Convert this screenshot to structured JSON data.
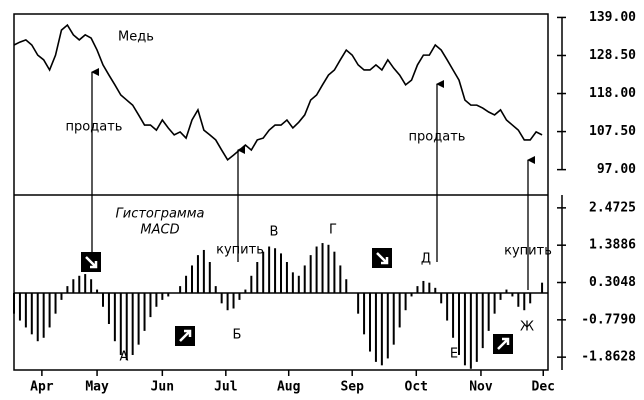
{
  "chart_data": [
    {
      "type": "line",
      "title": "Медь",
      "color": "#000000",
      "x": [
        0,
        1,
        2,
        3,
        4,
        5,
        6,
        7,
        8,
        9,
        10,
        11,
        12,
        13,
        14,
        15,
        16,
        17,
        18,
        19,
        20,
        21,
        22,
        23,
        24,
        25,
        26,
        27,
        28,
        29,
        30,
        31,
        32,
        33,
        34,
        35,
        36,
        37,
        38,
        39,
        40,
        41,
        42,
        43,
        44,
        45,
        46,
        47,
        48,
        49,
        50,
        51,
        52,
        53,
        54,
        55,
        56,
        57,
        58,
        59,
        60,
        61,
        62,
        63,
        64,
        65,
        66,
        67,
        68,
        69,
        70,
        71,
        72,
        73,
        74,
        75,
        76,
        77,
        78,
        79,
        80,
        81,
        82,
        83,
        84,
        85,
        86,
        87,
        88,
        89
      ],
      "values": [
        131.4,
        132.2,
        132.8,
        131.4,
        128.6,
        127.3,
        124.5,
        128.6,
        135.5,
        136.9,
        134.2,
        132.8,
        134.2,
        133.3,
        130.0,
        125.9,
        123.1,
        120.4,
        117.6,
        116.2,
        114.8,
        112.1,
        109.3,
        109.3,
        107.9,
        110.7,
        108.5,
        106.6,
        107.4,
        105.7,
        110.7,
        113.5,
        107.9,
        106.6,
        105.2,
        102.4,
        99.7,
        101.0,
        102.4,
        103.8,
        102.4,
        105.2,
        105.7,
        107.9,
        109.3,
        109.3,
        110.7,
        108.5,
        110.1,
        112.1,
        116.2,
        117.6,
        120.4,
        123.1,
        124.5,
        127.3,
        130.0,
        128.6,
        125.9,
        124.5,
        124.5,
        125.9,
        124.5,
        127.3,
        125.0,
        123.1,
        120.4,
        121.7,
        125.9,
        128.6,
        128.6,
        131.4,
        130.0,
        127.3,
        124.5,
        121.7,
        116.2,
        114.8,
        114.8,
        114.0,
        112.9,
        112.1,
        113.5,
        110.7,
        109.3,
        107.9,
        105.2,
        105.2,
        107.4,
        106.6
      ],
      "xlim": [
        0,
        90
      ],
      "ylim": [
        90,
        140.5
      ],
      "yticks": [
        {
          "value": 139,
          "label": "139.00"
        },
        {
          "value": 128.5,
          "label": "128.50"
        },
        {
          "value": 118,
          "label": "118.00"
        },
        {
          "value": 107.5,
          "label": "107.50"
        },
        {
          "value": 97,
          "label": "97.00"
        }
      ],
      "annotations": [
        "продать",
        "продать"
      ]
    },
    {
      "type": "bar",
      "color": "#000000",
      "x": [
        0,
        1,
        2,
        3,
        4,
        5,
        6,
        7,
        8,
        9,
        10,
        11,
        12,
        13,
        14,
        15,
        16,
        17,
        18,
        19,
        20,
        21,
        22,
        23,
        24,
        25,
        26,
        27,
        28,
        29,
        30,
        31,
        32,
        33,
        34,
        35,
        36,
        37,
        38,
        39,
        40,
        41,
        42,
        43,
        44,
        45,
        46,
        47,
        48,
        49,
        50,
        51,
        52,
        53,
        54,
        55,
        56,
        57,
        58,
        59,
        60,
        61,
        62,
        63,
        64,
        65,
        66,
        67,
        68,
        69,
        70,
        71,
        72,
        73,
        74,
        75,
        76,
        77,
        78,
        79,
        80,
        81,
        82,
        83,
        84,
        85,
        86,
        87,
        88,
        89
      ],
      "values": [
        -0.6,
        -0.8,
        -1.0,
        -1.2,
        -1.4,
        -1.3,
        -1.0,
        -0.6,
        -0.2,
        0.2,
        0.4,
        0.5,
        0.55,
        0.4,
        0.1,
        -0.4,
        -0.9,
        -1.4,
        -1.8,
        -1.95,
        -1.8,
        -1.5,
        -1.1,
        -0.7,
        -0.4,
        -0.2,
        -0.1,
        0.0,
        0.2,
        0.5,
        0.8,
        1.1,
        1.25,
        0.9,
        0.2,
        -0.3,
        -0.5,
        -0.45,
        -0.2,
        0.1,
        0.5,
        0.9,
        1.2,
        1.35,
        1.3,
        1.15,
        0.9,
        0.6,
        0.5,
        0.8,
        1.1,
        1.35,
        1.45,
        1.4,
        1.2,
        0.8,
        0.4,
        0.0,
        -0.6,
        -1.2,
        -1.7,
        -2.0,
        -2.1,
        -1.9,
        -1.5,
        -1.0,
        -0.5,
        -0.1,
        0.2,
        0.35,
        0.3,
        0.15,
        -0.3,
        -0.8,
        -1.3,
        -1.8,
        -2.1,
        -2.2,
        -2.0,
        -1.6,
        -1.1,
        -0.6,
        -0.2,
        0.1,
        -0.1,
        -0.4,
        -0.5,
        -0.3,
        0.0,
        0.3
      ],
      "xlim": [
        0,
        90
      ],
      "ylim": [
        -2.294,
        2.846
      ],
      "yticks": [
        2.4725,
        1.3886,
        0.3048,
        {
          "value": -0.779,
          "label": "-0.7790"
        },
        -1.8628
      ],
      "xticks": [
        {
          "value": 4.7,
          "label": "Apr"
        },
        {
          "value": 14,
          "label": "May"
        },
        {
          "value": 25,
          "label": "Jun"
        },
        {
          "value": 35.7,
          "label": "Jul"
        },
        {
          "value": 46.3,
          "label": "Aug"
        },
        {
          "value": 57,
          "label": "Sep"
        },
        {
          "value": 67.8,
          "label": "Oct"
        },
        {
          "value": 78.7,
          "label": "Nov"
        },
        {
          "value": 89.2,
          "label": "Dec"
        }
      ],
      "annotations": [
        "Гистограмма",
        "MACD",
        "купить",
        "купить",
        "А",
        "Б",
        "В",
        "Г",
        "Д",
        "Е",
        "Ж"
      ]
    }
  ]
}
